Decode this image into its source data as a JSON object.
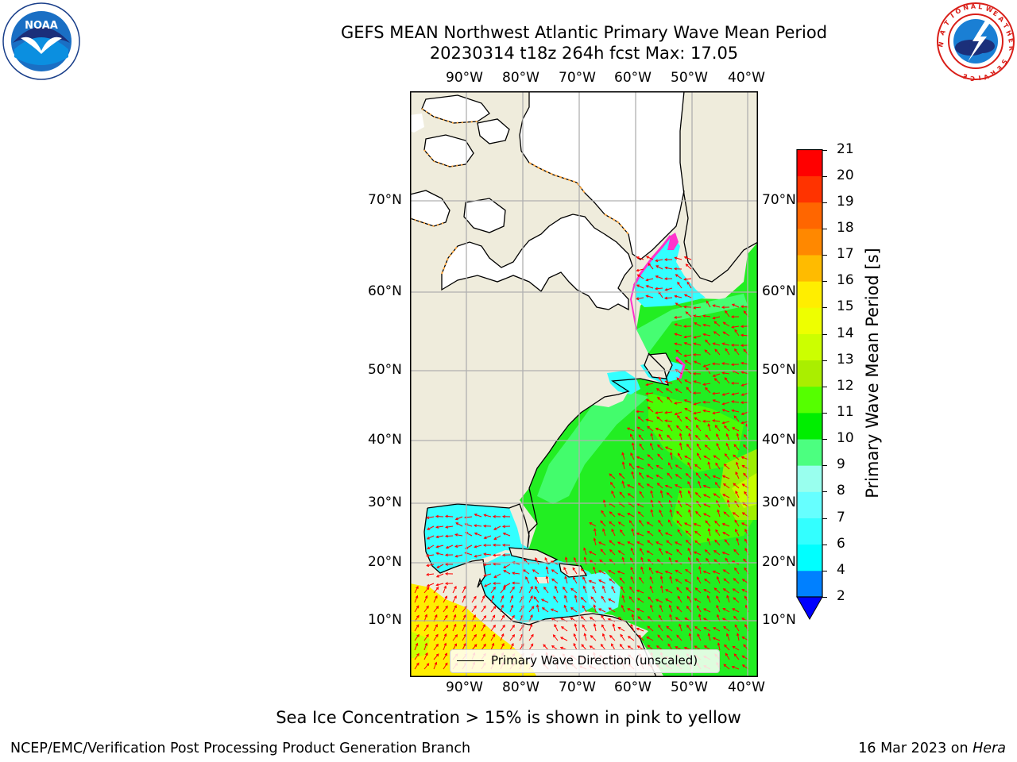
{
  "title": {
    "line1": "GEFS MEAN Northwest Atlantic Primary Wave Mean Period",
    "line2": "20230314 t18z 264h fcst   Max: 17.05"
  },
  "logos": {
    "left": {
      "icon": "noaa-logo",
      "ring_text": "NATIONAL OCEANIC AND ATMOSPHERIC ADMINISTRATION · U.S. DEPARTMENT OF COMMERCE",
      "center_text": "NOAA"
    },
    "right": {
      "icon": "nws-logo",
      "ring_text": "NATIONAL WEATHER SERVICE"
    }
  },
  "map": {
    "lon_labels": [
      "90°W",
      "80°W",
      "70°W",
      "60°W",
      "50°W",
      "40°W"
    ],
    "lat_labels": [
      "70°N",
      "60°N",
      "50°N",
      "40°N",
      "30°N",
      "20°N",
      "10°N"
    ],
    "legend_label": "Primary Wave Direction (unscaled)",
    "colors": {
      "land": "#efecdc",
      "ice": "#ffffff",
      "grid": "#b0b0b0",
      "arrows": "#ff0000"
    }
  },
  "colorbar": {
    "label": "Primary Wave Mean Period [s]",
    "tick_labels": [
      "2",
      "4",
      "6",
      "7",
      "8",
      "9",
      "10",
      "11",
      "12",
      "13",
      "14",
      "15",
      "16",
      "17",
      "18",
      "19",
      "20",
      "21"
    ],
    "bins": [
      {
        "from": 2,
        "to": 4,
        "color": "#0080ff"
      },
      {
        "from": 4,
        "to": 6,
        "color": "#00ffff"
      },
      {
        "from": 6,
        "to": 7,
        "color": "#33ffff"
      },
      {
        "from": 7,
        "to": 8,
        "color": "#66ffff"
      },
      {
        "from": 8,
        "to": 9,
        "color": "#99ffee"
      },
      {
        "from": 9,
        "to": 10,
        "color": "#4cff80"
      },
      {
        "from": 10,
        "to": 11,
        "color": "#00ee00"
      },
      {
        "from": 11,
        "to": 12,
        "color": "#55ff00"
      },
      {
        "from": 12,
        "to": 13,
        "color": "#aaee00"
      },
      {
        "from": 13,
        "to": 14,
        "color": "#ccff00"
      },
      {
        "from": 14,
        "to": 15,
        "color": "#eeff00"
      },
      {
        "from": 15,
        "to": 16,
        "color": "#ffee00"
      },
      {
        "from": 16,
        "to": 17,
        "color": "#ffbb00"
      },
      {
        "from": 17,
        "to": 18,
        "color": "#ff8800"
      },
      {
        "from": 18,
        "to": 19,
        "color": "#ff6600"
      },
      {
        "from": 19,
        "to": 20,
        "color": "#ff3300"
      },
      {
        "from": 20,
        "to": 21,
        "color": "#ff0000"
      }
    ],
    "under_color": "#0000ff"
  },
  "footnote": "Sea Ice Concentration > 15% is shown in pink to yellow",
  "credit_left": "NCEP/EMC/Verification Post Processing Product Generation Branch",
  "credit_right_date": "16 Mar 2023 on",
  "credit_right_host": "Hera"
}
